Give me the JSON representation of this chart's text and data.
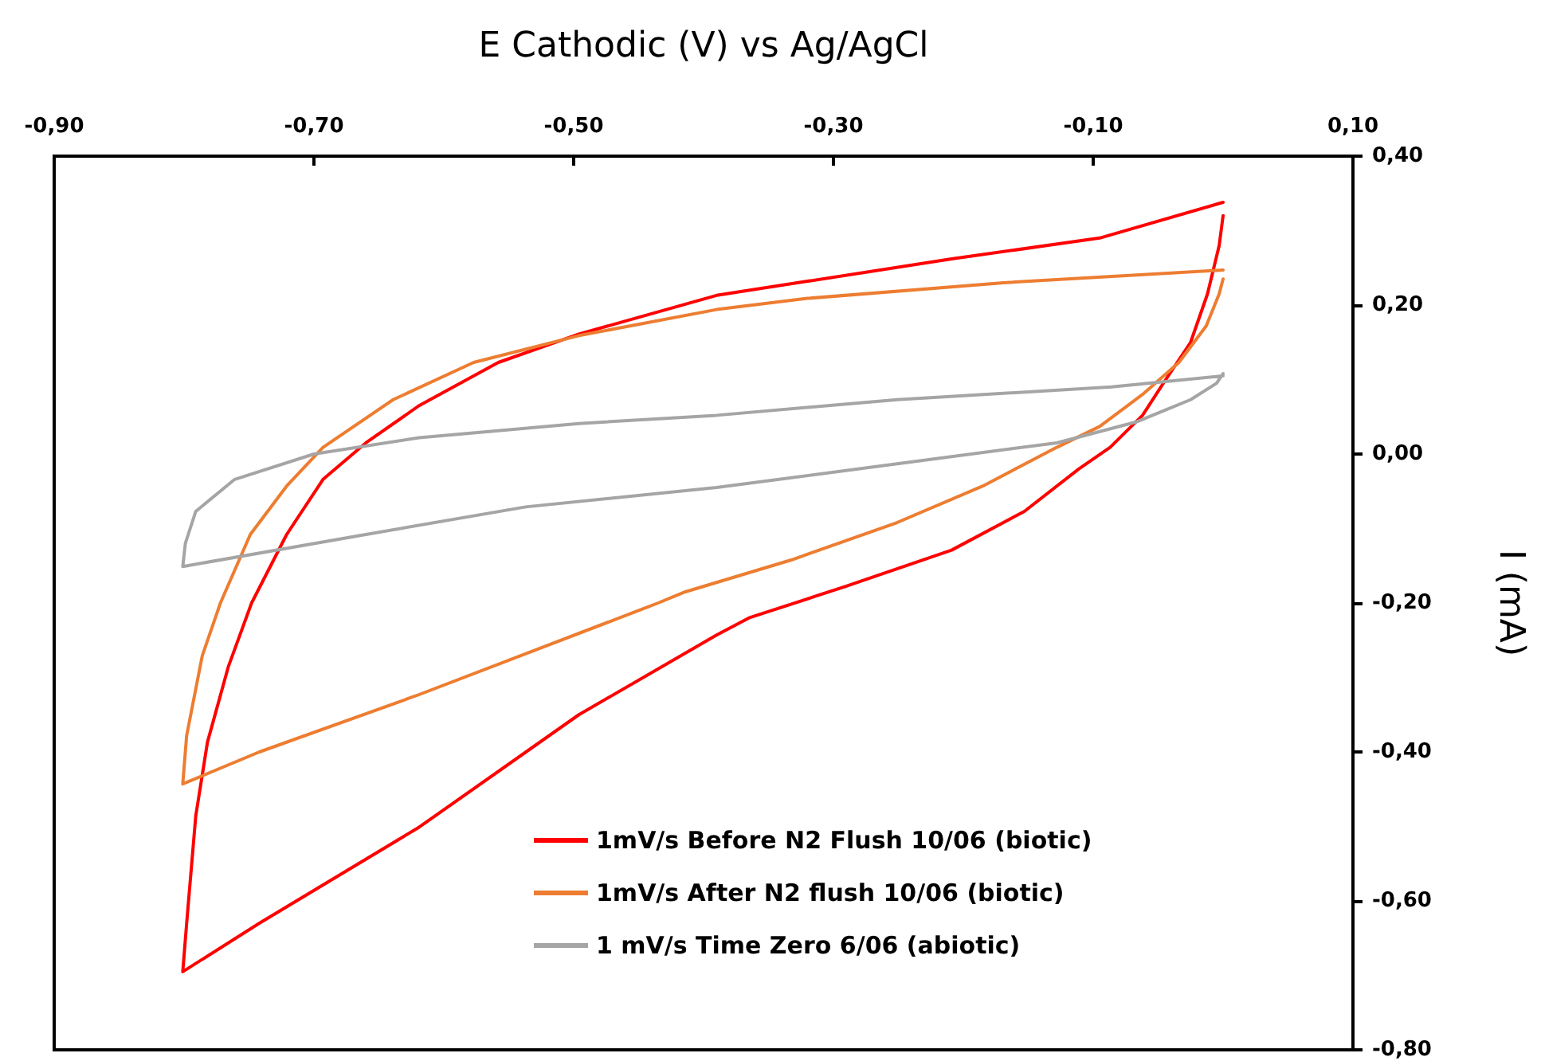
{
  "chart_data": {
    "type": "line",
    "xlabel": "E Cathodic (V) vs Ag/AgCl",
    "ylabel": "I (mA)",
    "xlim": [
      -0.9,
      0.1
    ],
    "xticks": [
      {
        "value": -0.9,
        "label": "-0,90"
      },
      {
        "value": -0.7,
        "label": "-0,70"
      },
      {
        "value": -0.5,
        "label": "-0,50"
      },
      {
        "value": -0.3,
        "label": "-0,30"
      },
      {
        "value": -0.1,
        "label": "-0,10"
      },
      {
        "value": 0.1,
        "label": "0,10"
      }
    ],
    "ylim": [
      -0.8,
      0.4
    ],
    "yticks": [
      {
        "value": -0.8,
        "label": "-0,80"
      },
      {
        "value": -0.6,
        "label": "-0,60"
      },
      {
        "value": -0.4,
        "label": "-0,40"
      },
      {
        "value": -0.2,
        "label": "-0,20"
      },
      {
        "value": 0,
        "label": "0,00"
      },
      {
        "value": 0.2,
        "label": "0,20"
      },
      {
        "value": 0.4,
        "label": "0,40"
      }
    ],
    "grid": false,
    "legend": "bottom",
    "marker": "none",
    "line_style": "solid",
    "series": [
      {
        "name": "1mV/s Before N2 Flush 10/06 (biotic)",
        "color": "#ff0000",
        "x": [
          0,
          -0.003,
          -0.012,
          -0.025,
          -0.046,
          -0.062,
          -0.087,
          -0.111,
          -0.153,
          -0.209,
          -0.291,
          -0.365,
          -0.39,
          -0.496,
          -0.619,
          -0.742,
          -0.801,
          -0.798,
          -0.791,
          -0.782,
          -0.766,
          -0.748,
          -0.721,
          -0.693,
          -0.66,
          -0.619,
          -0.558,
          -0.496,
          -0.39,
          -0.32,
          -0.209,
          -0.095,
          0
        ],
        "values": [
          0.32,
          0.28,
          0.215,
          0.15,
          0.095,
          0.052,
          0.009,
          -0.02,
          -0.077,
          -0.129,
          -0.178,
          -0.22,
          -0.243,
          -0.35,
          -0.501,
          -0.63,
          -0.695,
          -0.63,
          -0.486,
          -0.387,
          -0.286,
          -0.2,
          -0.108,
          -0.034,
          0.015,
          0.065,
          0.123,
          0.161,
          0.213,
          0.232,
          0.262,
          0.29,
          0.338
        ]
      },
      {
        "name": "1mV/s After N2 flush 10/06 (biotic)",
        "color": "#ed7d31",
        "x": [
          0,
          -0.003,
          -0.013,
          -0.034,
          -0.062,
          -0.095,
          -0.128,
          -0.185,
          -0.251,
          -0.332,
          -0.414,
          -0.435,
          -0.619,
          -0.742,
          -0.801,
          -0.798,
          -0.786,
          -0.772,
          -0.749,
          -0.721,
          -0.693,
          -0.639,
          -0.577,
          -0.496,
          -0.39,
          -0.32,
          -0.169,
          0
        ],
        "values": [
          0.235,
          0.215,
          0.172,
          0.123,
          0.08,
          0.037,
          0.009,
          -0.043,
          -0.092,
          -0.142,
          -0.185,
          -0.2,
          -0.323,
          -0.4,
          -0.443,
          -0.378,
          -0.271,
          -0.2,
          -0.108,
          -0.043,
          0.009,
          0.073,
          0.123,
          0.159,
          0.194,
          0.209,
          0.23,
          0.247
        ]
      },
      {
        "name": "1 mV/s Time Zero 6/06 (abiotic)",
        "color": "#a5a5a5",
        "x": [
          0,
          -0.005,
          -0.025,
          -0.067,
          -0.128,
          -0.251,
          -0.39,
          -0.537,
          -0.66,
          -0.801,
          -0.799,
          -0.791,
          -0.761,
          -0.7,
          -0.619,
          -0.496,
          -0.39,
          -0.251,
          -0.086,
          0
        ],
        "values": [
          0.108,
          0.095,
          0.073,
          0.043,
          0.015,
          -0.013,
          -0.045,
          -0.071,
          -0.108,
          -0.151,
          -0.12,
          -0.077,
          -0.034,
          0,
          0.022,
          0.041,
          0.052,
          0.073,
          0.09,
          0.105
        ]
      }
    ]
  }
}
